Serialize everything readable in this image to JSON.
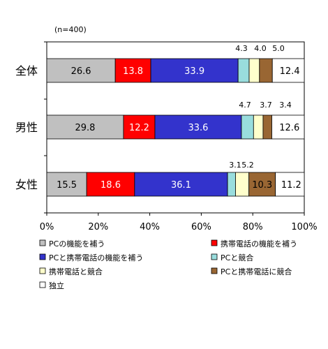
{
  "chart_data": {
    "type": "bar",
    "orientation": "horizontal",
    "stacked": true,
    "percent": true,
    "note": "(n=400)",
    "categories": [
      "全体",
      "男性",
      "女性"
    ],
    "xticks": [
      "0%",
      "20%",
      "40%",
      "60%",
      "80%",
      "100%"
    ],
    "xlim": [
      0,
      100
    ],
    "grid": false,
    "legend_position": "bottom",
    "series": [
      {
        "name": "PCの機能を補う",
        "color": "#c0c0c0",
        "values": [
          26.6,
          29.8,
          15.5
        ]
      },
      {
        "name": "携帯電話の機能を補う",
        "color": "#ff0000",
        "values": [
          13.8,
          12.2,
          18.6
        ]
      },
      {
        "name": "PCと携帯電話の機能を補う",
        "color": "#3333cc",
        "values": [
          33.9,
          33.6,
          36.1
        ]
      },
      {
        "name": "PCと競合",
        "color": "#99dddd",
        "values": [
          4.3,
          4.7,
          3.1
        ]
      },
      {
        "name": "携帯電話と競合",
        "color": "#ffffcc",
        "values": [
          4.0,
          3.7,
          5.2
        ]
      },
      {
        "name": "PCと携帯電話に競合",
        "color": "#996633",
        "values": [
          5.0,
          3.4,
          10.3
        ]
      },
      {
        "name": "独立",
        "color": "#ffffff",
        "values": [
          12.4,
          12.6,
          11.2
        ]
      }
    ],
    "data_labels": [
      [
        "26.6",
        "13.8",
        "33.9",
        "4.3",
        "4.0",
        "5.0",
        "12.4"
      ],
      [
        "29.8",
        "12.2",
        "33.6",
        "4.7",
        "3.7",
        "3.4",
        "12.6"
      ],
      [
        "15.5",
        "18.6",
        "36.1",
        "3.1",
        "5.2",
        "10.3",
        "11.2"
      ]
    ]
  }
}
